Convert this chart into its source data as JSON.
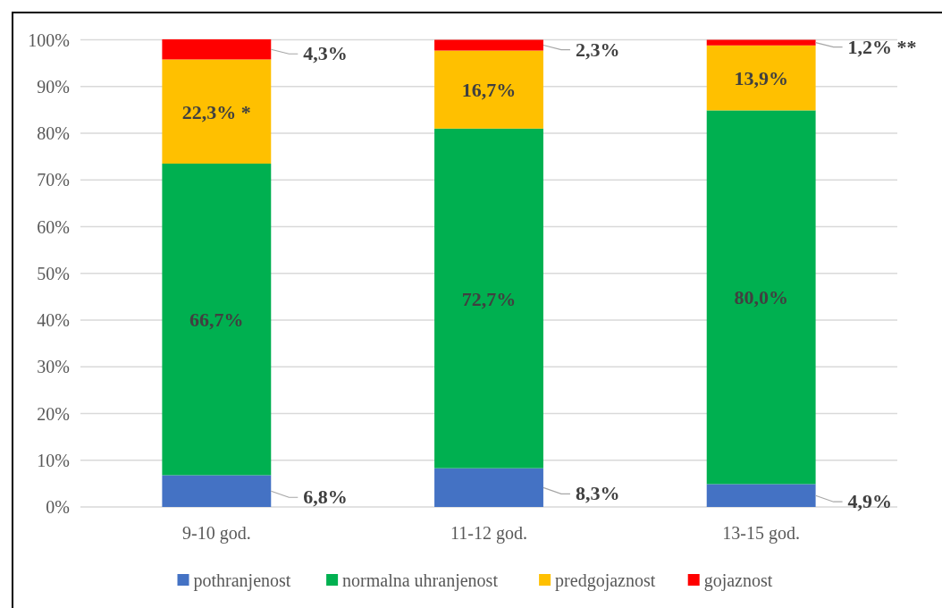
{
  "chart_data": {
    "type": "bar",
    "stacked": true,
    "categories": [
      "9-10 god.",
      "11-12 god.",
      "13-15 god."
    ],
    "series": [
      {
        "name": "pothranjenost",
        "color": "#4472c4",
        "values": [
          6.8,
          8.3,
          4.9
        ],
        "value_labels": [
          "6,8%",
          "8,3%",
          "4,9%"
        ]
      },
      {
        "name": "normalna uhranjenost",
        "color": "#00b050",
        "values": [
          66.7,
          72.7,
          80.0
        ],
        "value_labels": [
          "66,7%",
          "72,7%",
          "80,0%"
        ]
      },
      {
        "name": "predgojaznost",
        "color": "#ffc000",
        "values": [
          22.3,
          16.7,
          13.9
        ],
        "value_labels": [
          "22,3% *",
          "16,7%",
          "13,9%"
        ]
      },
      {
        "name": "gojaznost",
        "color": "#ff0000",
        "values": [
          4.3,
          2.3,
          1.2
        ],
        "value_labels": [
          "4,3%",
          "2,3%",
          "1,2% **"
        ]
      }
    ],
    "ylim": [
      0,
      100.1
    ],
    "yticks": [
      {
        "value": 0,
        "label": "0%"
      },
      {
        "value": 10,
        "label": "10%"
      },
      {
        "value": 20,
        "label": "20%"
      },
      {
        "value": 30,
        "label": "30%"
      },
      {
        "value": 40,
        "label": "40%"
      },
      {
        "value": 50,
        "label": "50%"
      },
      {
        "value": 60,
        "label": "60%"
      },
      {
        "value": 70,
        "label": "70%"
      },
      {
        "value": 80,
        "label": "80%"
      },
      {
        "value": 90,
        "label": "90%"
      },
      {
        "value": 100,
        "label": "100%"
      }
    ],
    "grid": "y",
    "legend": "bottom"
  }
}
